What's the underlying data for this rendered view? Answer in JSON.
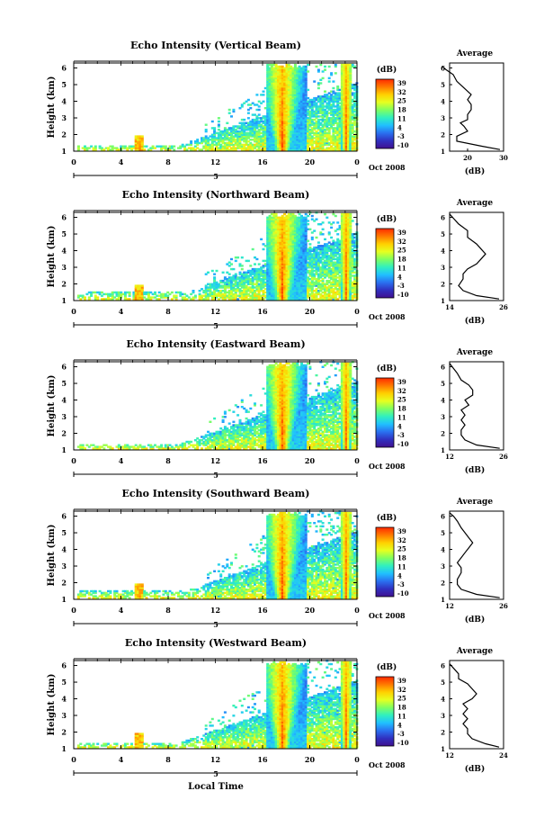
{
  "colorbar_unit": "(dB)",
  "colorbar_ticks": [
    "39",
    "32",
    "25",
    "18",
    "11",
    "4",
    "-3",
    "-10"
  ],
  "colorbar_colors": [
    "#ff2a00",
    "#ff7a00",
    "#ffd000",
    "#e6ff20",
    "#80ff60",
    "#30f0c0",
    "#20c0ff",
    "#2a70f0",
    "#3030c0",
    "#401090"
  ],
  "x_axis": {
    "ticks": [
      "0",
      "4",
      "8",
      "12",
      "16",
      "20",
      "0"
    ],
    "day_label": "5",
    "date_label": "Oct 2008",
    "xlabel": "Local Time"
  },
  "y_axis": {
    "label": "Height (km)",
    "ticks": [
      "1",
      "2",
      "3",
      "4",
      "5",
      "6"
    ]
  },
  "average_panel": {
    "title": "Average",
    "xlabel": "(dB)"
  },
  "chart_data": [
    {
      "type": "heatmap",
      "title": "Echo Intensity (Vertical Beam)",
      "ylabel": "Height (km)",
      "ylim": [
        1,
        6.3
      ],
      "xlim": [
        0,
        24
      ],
      "colorbar_range": [
        -10,
        39
      ],
      "average_profile": {
        "xlim": [
          15,
          30
        ],
        "xticks": [
          "20",
          "30"
        ],
        "height": [
          1.1,
          1.3,
          1.6,
          1.9,
          2.2,
          2.5,
          2.7,
          2.9,
          3.2,
          3.5,
          3.8,
          4.1,
          4.4,
          4.8,
          5.2,
          5.6,
          5.9,
          6.1
        ],
        "value": [
          29,
          24,
          17,
          17,
          20,
          19,
          18,
          20,
          20,
          21,
          21,
          20,
          21,
          19,
          17,
          16,
          14,
          13
        ]
      }
    },
    {
      "type": "heatmap",
      "title": "Echo Intensity (Northward Beam)",
      "ylabel": "Height (km)",
      "ylim": [
        1,
        6.3
      ],
      "xlim": [
        0,
        24
      ],
      "colorbar_range": [
        -10,
        39
      ],
      "average_profile": {
        "xlim": [
          14,
          26
        ],
        "xticks": [
          "14",
          "26"
        ],
        "height": [
          1.1,
          1.3,
          1.6,
          1.9,
          2.3,
          2.6,
          2.9,
          3.2,
          3.5,
          3.8,
          4.1,
          4.4,
          4.8,
          5.2,
          5.6,
          5.9,
          6.2
        ],
        "value": [
          25,
          20,
          17,
          16,
          17,
          17,
          18,
          20,
          21,
          22,
          21,
          20,
          18,
          18,
          16,
          15,
          14
        ]
      }
    },
    {
      "type": "heatmap",
      "title": "Echo Intensity (Eastward Beam)",
      "ylabel": "Height (km)",
      "ylim": [
        1,
        6.3
      ],
      "xlim": [
        0,
        24
      ],
      "colorbar_range": [
        -10,
        39
      ],
      "average_profile": {
        "xlim": [
          12,
          26
        ],
        "xticks": [
          "12",
          "26"
        ],
        "height": [
          1.1,
          1.3,
          1.6,
          1.9,
          2.2,
          2.5,
          2.8,
          3.1,
          3.4,
          3.7,
          4.0,
          4.3,
          4.6,
          4.9,
          5.2,
          5.6,
          5.9,
          6.2
        ],
        "value": [
          25,
          19,
          16,
          15,
          15,
          16,
          15,
          16,
          15,
          17,
          16,
          18,
          18,
          17,
          15,
          14,
          13,
          12
        ]
      }
    },
    {
      "type": "heatmap",
      "title": "Echo Intensity (Southward Beam)",
      "ylabel": "Height (km)",
      "ylim": [
        1,
        6.3
      ],
      "xlim": [
        0,
        24
      ],
      "colorbar_range": [
        -10,
        39
      ],
      "average_profile": {
        "xlim": [
          12,
          26
        ],
        "xticks": [
          "12",
          "26"
        ],
        "height": [
          1.1,
          1.3,
          1.6,
          1.9,
          2.2,
          2.6,
          2.9,
          3.2,
          3.5,
          3.8,
          4.1,
          4.4,
          4.7,
          5.0,
          5.3,
          5.7,
          6.0,
          6.2
        ],
        "value": [
          25,
          19,
          15,
          14,
          14,
          15,
          15,
          14,
          15,
          16,
          17,
          18,
          17,
          16,
          15,
          14,
          13,
          12
        ]
      }
    },
    {
      "type": "heatmap",
      "title": "Echo Intensity (Westward Beam)",
      "ylabel": "Height (km)",
      "ylim": [
        1,
        6.3
      ],
      "xlim": [
        0,
        24
      ],
      "colorbar_range": [
        -10,
        39
      ],
      "average_profile": {
        "xlim": [
          12,
          24
        ],
        "xticks": [
          "12",
          "24"
        ],
        "height": [
          1.1,
          1.3,
          1.6,
          1.9,
          2.2,
          2.5,
          2.8,
          3.1,
          3.4,
          3.7,
          4.0,
          4.3,
          4.6,
          4.9,
          5.2,
          5.5,
          5.8,
          6.1
        ],
        "value": [
          23,
          20,
          17,
          16,
          16,
          15,
          16,
          15,
          16,
          15,
          17,
          18,
          17,
          16,
          14,
          14,
          13,
          12
        ]
      }
    }
  ]
}
